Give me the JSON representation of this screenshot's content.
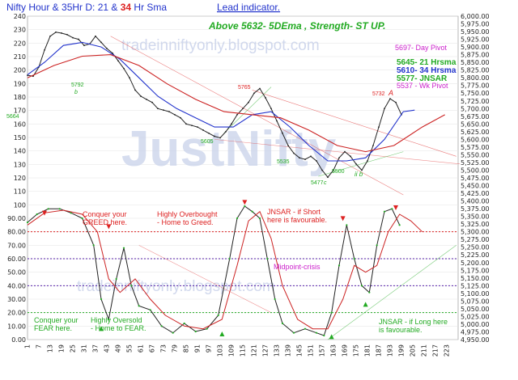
{
  "header": {
    "title_prefix": "Nifty Hour & 35Hr D: 21 & ",
    "title_highlight": "34",
    "title_suffix": " Hr Sma",
    "lead_link": "Lead indicator.",
    "subtitle": "Above 5632-  5DEma ,  Strength- ST  UP."
  },
  "watermark": {
    "big": "JustNifty",
    "url_top": "tradeinniftyonly.blogspot.com",
    "url_bottom": "tradeinniftyonly.blogspot.com"
  },
  "levels": {
    "day_pivot": "5697- Day Pivot",
    "hrsma21": "5645- 21 Hrsma",
    "hrsma34": "5610- 34 Hrsma",
    "jnsar": "5577- JNSAR",
    "wk_pivot": "5537 - Wk Pivot"
  },
  "annotations": {
    "greed": "Conquer your\nGREED here.",
    "overbought": "Highly Overbought\n- Home to Greed.",
    "jnsar_short": "JNSAR - if Short\nhere is favourable.",
    "midpoint": "Midpoint-crisis",
    "fear": "Conquer your\nFEAR here.",
    "oversold": "Highly Oversold\n- Home to FEAR.",
    "jnsar_long": "JNSAR - if Long here\nis favourable."
  },
  "price_labels": {
    "p5792": "5792",
    "p5765": "5765",
    "p5605": "5605",
    "p5535": "5535",
    "p5477": "5477",
    "p5500": "5500",
    "p5732": "5732",
    "p5664": "5664",
    "wave_a": "A",
    "wave_b": "b",
    "wave_c": "c",
    "wave_ii": "ii b"
  },
  "chart_data": {
    "type": "line",
    "title": "Nifty Hour & 35Hr D: 21 & 34 Hr Sma",
    "x_ticks": [
      "1",
      "7",
      "13",
      "19",
      "25",
      "31",
      "37",
      "43",
      "49",
      "55",
      "61",
      "67",
      "73",
      "79",
      "85",
      "91",
      "97",
      "103",
      "109",
      "115",
      "121",
      "127",
      "133",
      "139",
      "145",
      "151",
      "157",
      "163",
      "169",
      "175",
      "181",
      "187",
      "193",
      "199",
      "205",
      "211",
      "217",
      "223"
    ],
    "left_axis_ticks": [
      "240",
      "230",
      "220",
      "210",
      "200",
      "190",
      "180",
      "170",
      "160",
      "150",
      "140",
      "130",
      "120",
      "110",
      "100",
      "90.00",
      "80.00",
      "70.00",
      "60.00",
      "50.00",
      "40.00",
      "30.00",
      "20.00",
      "10.00",
      "0.00"
    ],
    "right_axis_ticks": [
      "6,000.00",
      "5,975.00",
      "5,950.00",
      "5,925.00",
      "5,900.00",
      "5,875.00",
      "5,850.00",
      "5,825.00",
      "5,800.00",
      "5,775.00",
      "5,750.00",
      "5,725.00",
      "5,700.00",
      "5,675.00",
      "5,650.00",
      "5,625.00",
      "5,600.00",
      "5,575.00",
      "5,550.00",
      "5,525.00",
      "5,500.00",
      "5,475.00",
      "5,450.00",
      "5,425.00",
      "5,400.00",
      "5,375.00",
      "5,350.00",
      "5,325.00",
      "5,300.00",
      "5,275.00",
      "5,250.00",
      "5,225.00",
      "5,200.00",
      "5,175.00",
      "5,150.00",
      "5,125.00",
      "5,100.00",
      "5,075.00",
      "5,050.00",
      "5,025.00",
      "5,000.00",
      "4,975.00",
      "4,950.00"
    ],
    "xlim": [
      1,
      229
    ],
    "price_ylim": [
      4950,
      6000
    ],
    "osc_ylim": [
      0,
      240
    ],
    "horizontal_lines": [
      {
        "y": 80,
        "color": "#dd2222"
      },
      {
        "y": 60,
        "color": "#5522aa"
      },
      {
        "y": 40,
        "color": "#5522aa"
      },
      {
        "y": 20,
        "color": "#22aa22"
      }
    ],
    "series": [
      {
        "name": "price",
        "color": "#222222",
        "points": [
          [
            1,
            5808
          ],
          [
            4,
            5805
          ],
          [
            7,
            5835
          ],
          [
            10,
            5890
          ],
          [
            13,
            5935
          ],
          [
            16,
            5948
          ],
          [
            19,
            5945
          ],
          [
            22,
            5940
          ],
          [
            25,
            5930
          ],
          [
            28,
            5925
          ],
          [
            31,
            5905
          ],
          [
            34,
            5910
          ],
          [
            37,
            5935
          ],
          [
            40,
            5915
          ],
          [
            43,
            5895
          ],
          [
            46,
            5880
          ],
          [
            49,
            5855
          ],
          [
            52,
            5830
          ],
          [
            55,
            5800
          ],
          [
            58,
            5760
          ],
          [
            61,
            5740
          ],
          [
            64,
            5730
          ],
          [
            67,
            5720
          ],
          [
            70,
            5700
          ],
          [
            73,
            5695
          ],
          [
            76,
            5690
          ],
          [
            79,
            5680
          ],
          [
            82,
            5670
          ],
          [
            85,
            5650
          ],
          [
            88,
            5645
          ],
          [
            91,
            5640
          ],
          [
            94,
            5630
          ],
          [
            97,
            5620
          ],
          [
            100,
            5610
          ],
          [
            103,
            5605
          ],
          [
            106,
            5625
          ],
          [
            109,
            5650
          ],
          [
            112,
            5680
          ],
          [
            115,
            5700
          ],
          [
            118,
            5720
          ],
          [
            121,
            5750
          ],
          [
            124,
            5765
          ],
          [
            127,
            5735
          ],
          [
            130,
            5700
          ],
          [
            133,
            5660
          ],
          [
            136,
            5620
          ],
          [
            139,
            5580
          ],
          [
            142,
            5555
          ],
          [
            145,
            5540
          ],
          [
            148,
            5535
          ],
          [
            151,
            5545
          ],
          [
            154,
            5530
          ],
          [
            157,
            5500
          ],
          [
            160,
            5477
          ],
          [
            163,
            5500
          ],
          [
            166,
            5540
          ],
          [
            169,
            5560
          ],
          [
            172,
            5545
          ],
          [
            175,
            5520
          ],
          [
            178,
            5500
          ],
          [
            181,
            5530
          ],
          [
            184,
            5580
          ],
          [
            187,
            5640
          ],
          [
            190,
            5700
          ],
          [
            193,
            5732
          ],
          [
            196,
            5720
          ],
          [
            199,
            5680
          ]
        ]
      },
      {
        "name": "21 Hr Sma",
        "color": "#2233cc",
        "points": [
          [
            1,
            5810
          ],
          [
            10,
            5850
          ],
          [
            20,
            5905
          ],
          [
            30,
            5915
          ],
          [
            40,
            5900
          ],
          [
            50,
            5860
          ],
          [
            60,
            5800
          ],
          [
            70,
            5740
          ],
          [
            80,
            5700
          ],
          [
            90,
            5670
          ],
          [
            100,
            5640
          ],
          [
            110,
            5640
          ],
          [
            120,
            5680
          ],
          [
            130,
            5690
          ],
          [
            140,
            5640
          ],
          [
            150,
            5580
          ],
          [
            160,
            5530
          ],
          [
            170,
            5530
          ],
          [
            180,
            5540
          ],
          [
            190,
            5600
          ],
          [
            200,
            5690
          ],
          [
            206,
            5695
          ]
        ]
      },
      {
        "name": "34 Hr Sma",
        "color": "#cc2222",
        "points": [
          [
            1,
            5800
          ],
          [
            15,
            5840
          ],
          [
            30,
            5870
          ],
          [
            45,
            5875
          ],
          [
            60,
            5840
          ],
          [
            75,
            5780
          ],
          [
            90,
            5730
          ],
          [
            105,
            5690
          ],
          [
            120,
            5680
          ],
          [
            135,
            5670
          ],
          [
            150,
            5630
          ],
          [
            165,
            5580
          ],
          [
            180,
            5560
          ],
          [
            195,
            5580
          ],
          [
            210,
            5640
          ],
          [
            222,
            5680
          ]
        ]
      }
    ],
    "oscillator": [
      {
        "name": "fast",
        "color": "#222222",
        "points": [
          [
            1,
            87
          ],
          [
            6,
            93
          ],
          [
            12,
            97
          ],
          [
            18,
            97
          ],
          [
            24,
            94
          ],
          [
            30,
            90
          ],
          [
            36,
            70
          ],
          [
            40,
            30
          ],
          [
            44,
            15
          ],
          [
            48,
            45
          ],
          [
            52,
            68
          ],
          [
            56,
            40
          ],
          [
            60,
            25
          ],
          [
            66,
            22
          ],
          [
            72,
            10
          ],
          [
            78,
            5
          ],
          [
            84,
            12
          ],
          [
            90,
            6
          ],
          [
            96,
            8
          ],
          [
            102,
            18
          ],
          [
            108,
            60
          ],
          [
            112,
            90
          ],
          [
            116,
            99
          ],
          [
            120,
            95
          ],
          [
            124,
            90
          ],
          [
            128,
            60
          ],
          [
            132,
            30
          ],
          [
            136,
            12
          ],
          [
            142,
            5
          ],
          [
            148,
            8
          ],
          [
            154,
            5
          ],
          [
            158,
            3
          ],
          [
            162,
            20
          ],
          [
            166,
            55
          ],
          [
            170,
            85
          ],
          [
            174,
            60
          ],
          [
            178,
            40
          ],
          [
            182,
            35
          ],
          [
            186,
            70
          ],
          [
            190,
            95
          ],
          [
            194,
            97
          ],
          [
            198,
            85
          ]
        ]
      },
      {
        "name": "slow",
        "color": "#cc2222",
        "points": [
          [
            1,
            85
          ],
          [
            10,
            94
          ],
          [
            20,
            96
          ],
          [
            30,
            93
          ],
          [
            38,
            80
          ],
          [
            44,
            45
          ],
          [
            50,
            35
          ],
          [
            58,
            45
          ],
          [
            66,
            30
          ],
          [
            74,
            18
          ],
          [
            84,
            10
          ],
          [
            94,
            8
          ],
          [
            104,
            15
          ],
          [
            112,
            55
          ],
          [
            118,
            88
          ],
          [
            124,
            95
          ],
          [
            130,
            75
          ],
          [
            136,
            40
          ],
          [
            144,
            15
          ],
          [
            152,
            8
          ],
          [
            160,
            8
          ],
          [
            168,
            30
          ],
          [
            174,
            55
          ],
          [
            180,
            50
          ],
          [
            186,
            55
          ],
          [
            192,
            80
          ],
          [
            198,
            93
          ],
          [
            204,
            88
          ],
          [
            210,
            80
          ]
        ]
      }
    ]
  }
}
